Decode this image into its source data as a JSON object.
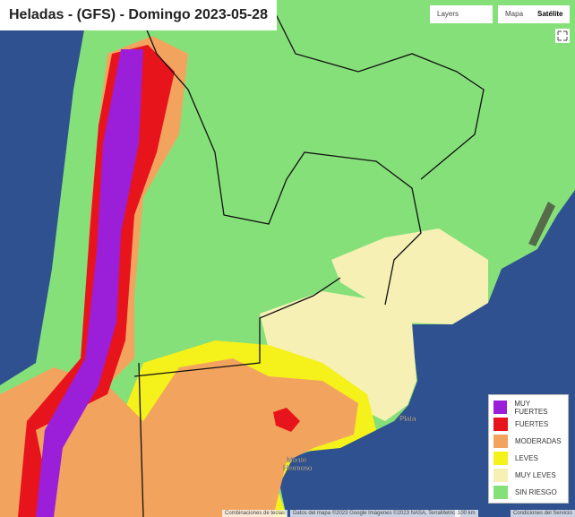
{
  "header": {
    "title": "Heladas - (GFS) - Domingo 2023-05-28"
  },
  "controls": {
    "layers": "Layers",
    "map": "Mapa",
    "satellite": "Satélite"
  },
  "legend": {
    "items": [
      {
        "label": "MUY FUERTES",
        "color": "#9b1fd8"
      },
      {
        "label": "FUERTES",
        "color": "#e8141c"
      },
      {
        "label": "MODERADAS",
        "color": "#f2a45e"
      },
      {
        "label": "LEVES",
        "color": "#f5f11a"
      },
      {
        "label": "MUY LEVES",
        "color": "#f6f0b4"
      },
      {
        "label": "SIN RIESGO",
        "color": "#86e07a"
      }
    ]
  },
  "place_labels": [
    {
      "text": "Plata"
    },
    {
      "lines": [
        "Monte",
        "Hermoso"
      ]
    }
  ],
  "footer": {
    "shortcuts": "Combinaciones de teclas",
    "attribution": "Datos del mapa ©2023 Google Imágenes ©2023 NASA, TerraMetrics",
    "scale": "100 km",
    "terms": "Condiciones del Servicio"
  }
}
